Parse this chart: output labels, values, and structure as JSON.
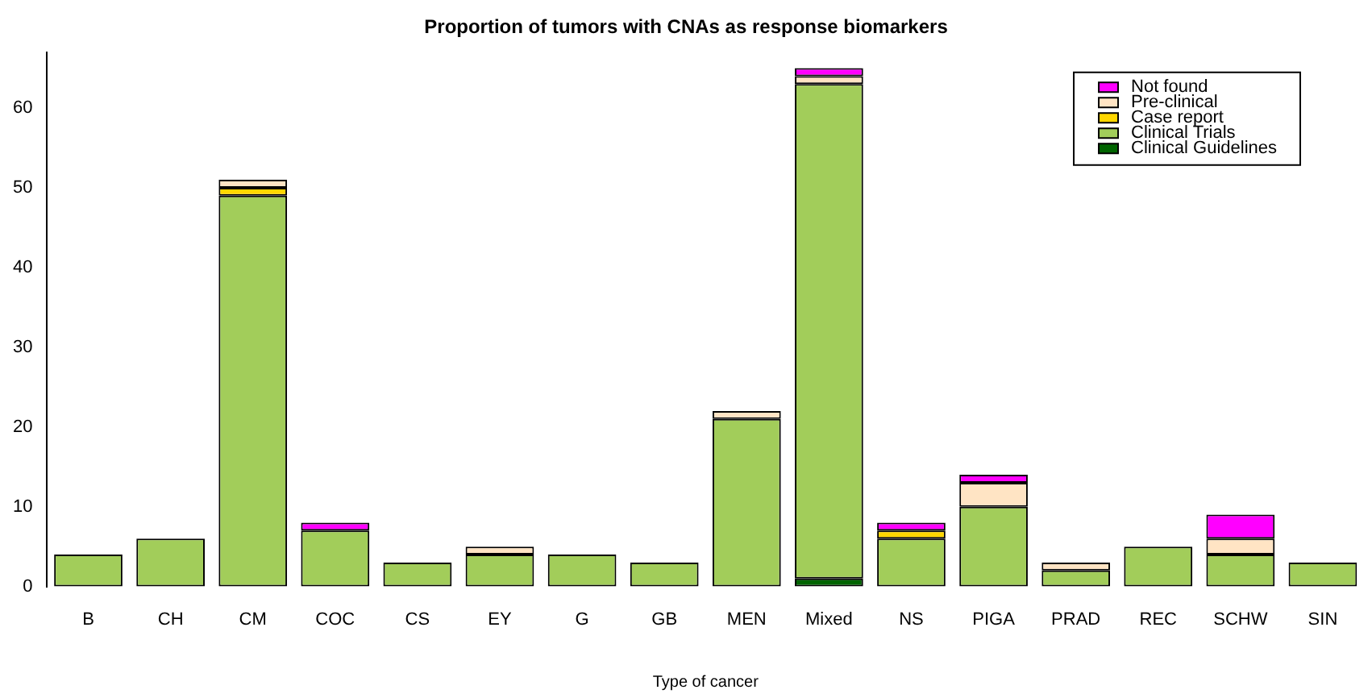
{
  "chart_data": {
    "type": "bar",
    "title": "Proportion of tumors with CNAs as response biomarkers",
    "xlabel": "Type of cancer",
    "categories": [
      "B",
      "CH",
      "CM",
      "COC",
      "CS",
      "EY",
      "G",
      "GB",
      "MEN",
      "Mixed",
      "NS",
      "PIGA",
      "PRAD",
      "REC",
      "SCHW",
      "SIN"
    ],
    "stacked": true,
    "series": [
      {
        "name": "Clinical Guidelines",
        "color": "#006400",
        "values": [
          0,
          0,
          0,
          0,
          0,
          0,
          0,
          0,
          0,
          1,
          0,
          0,
          0,
          0,
          0,
          0
        ]
      },
      {
        "name": "Clinical Trials",
        "color": "#a2cd5a",
        "values": [
          4,
          6,
          49,
          7,
          3,
          4,
          4,
          3,
          21,
          62,
          6,
          10,
          2,
          5,
          4,
          3
        ]
      },
      {
        "name": "Case report",
        "color": "#ffd700",
        "values": [
          0,
          0,
          1,
          0,
          0,
          0,
          0,
          0,
          0,
          0,
          1,
          0,
          0,
          0,
          0,
          0
        ]
      },
      {
        "name": "Pre-clinical",
        "color": "#ffe4c4",
        "values": [
          0,
          0,
          1,
          0,
          0,
          1,
          0,
          0,
          1,
          1,
          0,
          3,
          1,
          0,
          2,
          0
        ]
      },
      {
        "name": "Not found",
        "color": "#ff00ff",
        "values": [
          0,
          0,
          0,
          1,
          0,
          0,
          0,
          0,
          0,
          1,
          1,
          1,
          0,
          0,
          3,
          0
        ]
      }
    ],
    "ylim": [
      0,
      67
    ],
    "yticks": [
      0,
      10,
      20,
      30,
      40,
      50,
      60
    ],
    "grid": false,
    "legend": "top right"
  }
}
